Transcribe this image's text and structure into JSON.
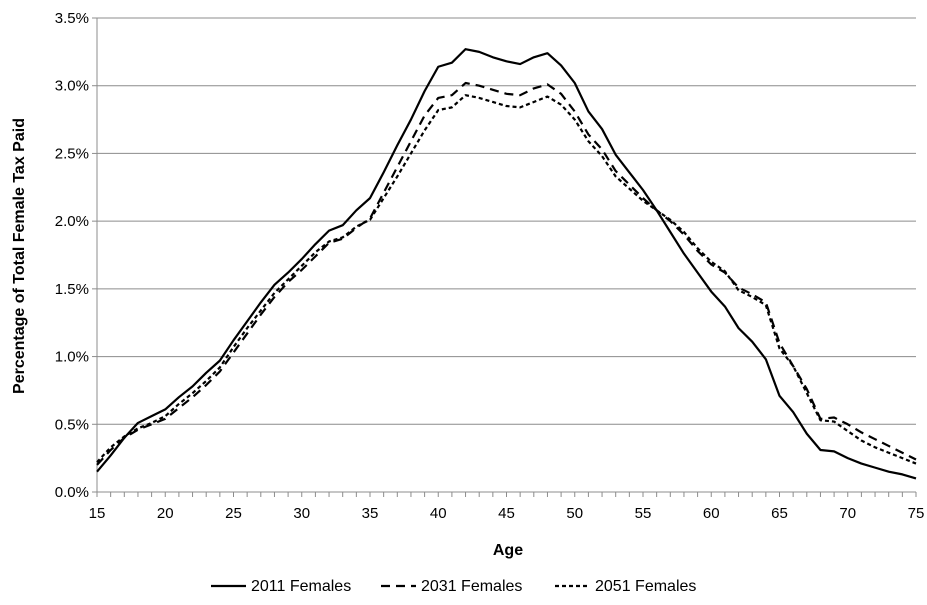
{
  "chart_data": {
    "type": "line",
    "xlabel": "Age",
    "ylabel": "Percentage of Total Female Tax Paid",
    "xlim": [
      15,
      75
    ],
    "ylim": [
      0,
      3.5
    ],
    "x_ticks": [
      15,
      20,
      25,
      30,
      35,
      40,
      45,
      50,
      55,
      60,
      65,
      70,
      75
    ],
    "y_ticks": [
      0,
      0.5,
      1.0,
      1.5,
      2.0,
      2.5,
      3.0,
      3.5
    ],
    "y_tick_labels": [
      "0.0%",
      "0.5%",
      "1.0%",
      "1.5%",
      "2.0%",
      "2.5%",
      "3.0%",
      "3.5%"
    ],
    "grid": "horizontal",
    "legend_position": "bottom",
    "x": [
      15,
      16,
      17,
      18,
      19,
      20,
      21,
      22,
      23,
      24,
      25,
      26,
      27,
      28,
      29,
      30,
      31,
      32,
      33,
      34,
      35,
      36,
      37,
      38,
      39,
      40,
      41,
      42,
      43,
      44,
      45,
      46,
      47,
      48,
      49,
      50,
      51,
      52,
      53,
      54,
      55,
      56,
      57,
      58,
      59,
      60,
      61,
      62,
      63,
      64,
      65,
      66,
      67,
      68,
      69,
      70,
      71,
      72,
      73,
      74,
      75
    ],
    "series": [
      {
        "name": "2011 Females",
        "dash": "solid",
        "values": [
          0.15,
          0.27,
          0.4,
          0.51,
          0.56,
          0.61,
          0.7,
          0.78,
          0.88,
          0.97,
          1.12,
          1.26,
          1.4,
          1.53,
          1.62,
          1.72,
          1.83,
          1.93,
          1.97,
          2.08,
          2.17,
          2.36,
          2.56,
          2.75,
          2.96,
          3.14,
          3.17,
          3.27,
          3.25,
          3.21,
          3.18,
          3.16,
          3.21,
          3.24,
          3.15,
          3.02,
          2.81,
          2.68,
          2.49,
          2.36,
          2.23,
          2.08,
          1.92,
          1.76,
          1.62,
          1.48,
          1.37,
          1.21,
          1.11,
          0.98,
          0.71,
          0.59,
          0.43,
          0.31,
          0.3,
          0.25,
          0.21,
          0.18,
          0.15,
          0.13,
          0.1
        ]
      },
      {
        "name": "2031 Females",
        "dash": "long-dash",
        "values": [
          0.2,
          0.31,
          0.4,
          0.46,
          0.5,
          0.54,
          0.62,
          0.7,
          0.79,
          0.89,
          1.03,
          1.17,
          1.31,
          1.44,
          1.55,
          1.64,
          1.74,
          1.84,
          1.87,
          1.95,
          2.02,
          2.21,
          2.4,
          2.59,
          2.78,
          2.91,
          2.93,
          3.02,
          3.0,
          2.97,
          2.94,
          2.93,
          2.98,
          3.01,
          2.94,
          2.81,
          2.64,
          2.53,
          2.37,
          2.27,
          2.17,
          2.08,
          2.0,
          1.9,
          1.78,
          1.68,
          1.62,
          1.51,
          1.46,
          1.4,
          1.1,
          0.93,
          0.76,
          0.54,
          0.55,
          0.5,
          0.44,
          0.39,
          0.34,
          0.29,
          0.24
        ]
      },
      {
        "name": "2051 Females",
        "dash": "short-dash",
        "values": [
          0.22,
          0.33,
          0.41,
          0.47,
          0.51,
          0.56,
          0.65,
          0.73,
          0.82,
          0.92,
          1.07,
          1.21,
          1.34,
          1.47,
          1.57,
          1.67,
          1.77,
          1.85,
          1.88,
          1.96,
          2.01,
          2.17,
          2.33,
          2.5,
          2.67,
          2.82,
          2.84,
          2.93,
          2.91,
          2.88,
          2.85,
          2.84,
          2.88,
          2.92,
          2.86,
          2.75,
          2.59,
          2.48,
          2.33,
          2.24,
          2.15,
          2.08,
          2.01,
          1.92,
          1.8,
          1.7,
          1.63,
          1.49,
          1.44,
          1.38,
          1.06,
          0.93,
          0.73,
          0.53,
          0.52,
          0.45,
          0.38,
          0.33,
          0.29,
          0.25,
          0.21
        ]
      }
    ]
  }
}
